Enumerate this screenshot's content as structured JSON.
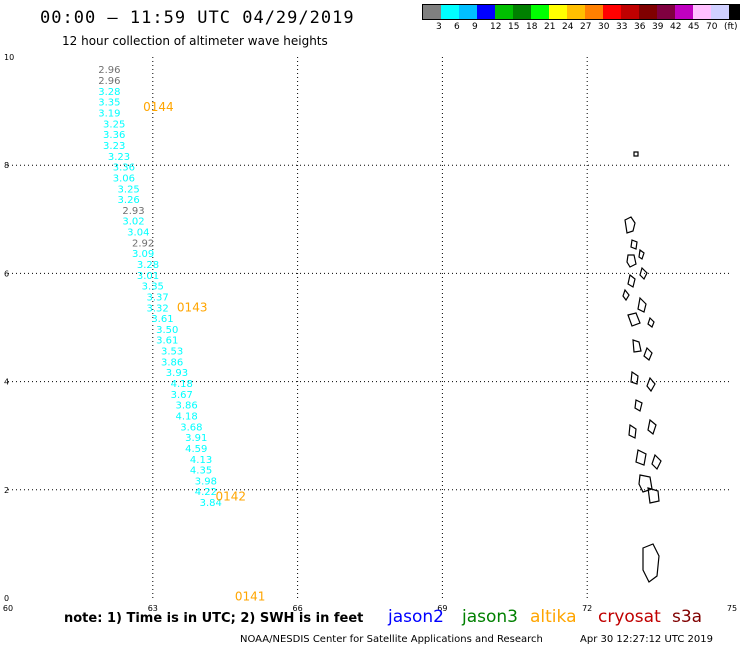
{
  "title": "00:00 – 11:59 UTC 04/29/2019",
  "subtitle": "12 hour collection of altimeter wave heights",
  "legend": {
    "colors": [
      "#808080",
      "#00ffff",
      "#00bfff",
      "#0000ff",
      "#00bf00",
      "#008000",
      "#00ff00",
      "#ffff00",
      "#ffbf00",
      "#ff8000",
      "#ff0000",
      "#c00000",
      "#800000",
      "#800040",
      "#c000c0",
      "#ffc0ff",
      "#d0d0ff",
      "#000000"
    ],
    "labels": [
      "3",
      "6",
      "9",
      "12",
      "15",
      "18",
      "21",
      "24",
      "27",
      "30",
      "33",
      "36",
      "39",
      "42",
      "45",
      "70",
      "(ft)"
    ]
  },
  "axes": {
    "x_ticks": [
      "60",
      "63",
      "66",
      "69",
      "72",
      "75"
    ],
    "y_ticks": [
      "0",
      "2",
      "4",
      "6",
      "8",
      "10"
    ]
  },
  "note": "note:  1) Time is in UTC;  2) SWH is in feet",
  "satellites": [
    {
      "name": "jason2",
      "color": "#0000ff"
    },
    {
      "name": "jason3",
      "color": "#008000"
    },
    {
      "name": "altika",
      "color": "#ffa500"
    },
    {
      "name": "cryosat",
      "color": "#c00000"
    },
    {
      "name": "s3a",
      "color": "#800000"
    }
  ],
  "credit": "NOAA/NESDIS Center for Satellite Applications and Research",
  "timestamp": "Apr 30 12:27:12 UTC 2019",
  "chart_data": {
    "type": "scatter",
    "xlim": [
      60,
      75
    ],
    "ylim": [
      0,
      10
    ],
    "grid": true,
    "track_series": [
      {
        "name": "altika",
        "color": "#00ffff",
        "time_labels": [
          {
            "text": "0144",
            "x": 62.8,
            "y": 9.0,
            "color": "#ffa500"
          },
          {
            "text": "0143",
            "x": 63.5,
            "y": 5.3,
            "color": "#ffa500"
          },
          {
            "text": "0142",
            "x": 64.3,
            "y": 1.8,
            "color": "#ffa500"
          },
          {
            "text": "0141",
            "x": 64.7,
            "y": -0.05,
            "color": "#ffa500"
          }
        ],
        "points": [
          {
            "v": "2.96",
            "x": 62.1,
            "y": 9.7,
            "gray": true
          },
          {
            "v": "2.96",
            "x": 62.1,
            "y": 9.5,
            "gray": true
          },
          {
            "v": "3.28",
            "x": 62.1,
            "y": 9.3
          },
          {
            "v": "3.35",
            "x": 62.1,
            "y": 9.1
          },
          {
            "v": "3.19",
            "x": 62.1,
            "y": 8.9
          },
          {
            "v": "3.25",
            "x": 62.2,
            "y": 8.7
          },
          {
            "v": "3.36",
            "x": 62.2,
            "y": 8.5
          },
          {
            "v": "3.23",
            "x": 62.2,
            "y": 8.3
          },
          {
            "v": "3.23",
            "x": 62.3,
            "y": 8.1
          },
          {
            "v": "3.36",
            "x": 62.4,
            "y": 7.9
          },
          {
            "v": "3.06",
            "x": 62.4,
            "y": 7.7
          },
          {
            "v": "3.25",
            "x": 62.5,
            "y": 7.5
          },
          {
            "v": "3.26",
            "x": 62.5,
            "y": 7.3
          },
          {
            "v": "2.93",
            "x": 62.6,
            "y": 7.1,
            "gray": true
          },
          {
            "v": "3.02",
            "x": 62.6,
            "y": 6.9
          },
          {
            "v": "3.04",
            "x": 62.7,
            "y": 6.7
          },
          {
            "v": "2.92",
            "x": 62.8,
            "y": 6.5,
            "gray": true
          },
          {
            "v": "3.09",
            "x": 62.8,
            "y": 6.3
          },
          {
            "v": "3.28",
            "x": 62.9,
            "y": 6.1
          },
          {
            "v": "3.01",
            "x": 62.9,
            "y": 5.9
          },
          {
            "v": "3.35",
            "x": 63.0,
            "y": 5.7
          },
          {
            "v": "3.37",
            "x": 63.1,
            "y": 5.5
          },
          {
            "v": "3.32",
            "x": 63.1,
            "y": 5.3
          },
          {
            "v": "3.61",
            "x": 63.2,
            "y": 5.1
          },
          {
            "v": "3.50",
            "x": 63.3,
            "y": 4.9
          },
          {
            "v": "3.61",
            "x": 63.3,
            "y": 4.7
          },
          {
            "v": "3.53",
            "x": 63.4,
            "y": 4.5
          },
          {
            "v": "3.86",
            "x": 63.4,
            "y": 4.3
          },
          {
            "v": "3.93",
            "x": 63.5,
            "y": 4.1
          },
          {
            "v": "4.18",
            "x": 63.6,
            "y": 3.9
          },
          {
            "v": "3.67",
            "x": 63.6,
            "y": 3.7
          },
          {
            "v": "3.86",
            "x": 63.7,
            "y": 3.5
          },
          {
            "v": "4.18",
            "x": 63.7,
            "y": 3.3
          },
          {
            "v": "3.68",
            "x": 63.8,
            "y": 3.1
          },
          {
            "v": "3.91",
            "x": 63.9,
            "y": 2.9
          },
          {
            "v": "4.59",
            "x": 63.9,
            "y": 2.7
          },
          {
            "v": "4.13",
            "x": 64.0,
            "y": 2.5
          },
          {
            "v": "4.35",
            "x": 64.0,
            "y": 2.3
          },
          {
            "v": "3.98",
            "x": 64.1,
            "y": 2.1
          },
          {
            "v": "4.22",
            "x": 64.1,
            "y": 1.9
          },
          {
            "v": "3.84",
            "x": 64.2,
            "y": 1.7
          }
        ]
      }
    ]
  }
}
